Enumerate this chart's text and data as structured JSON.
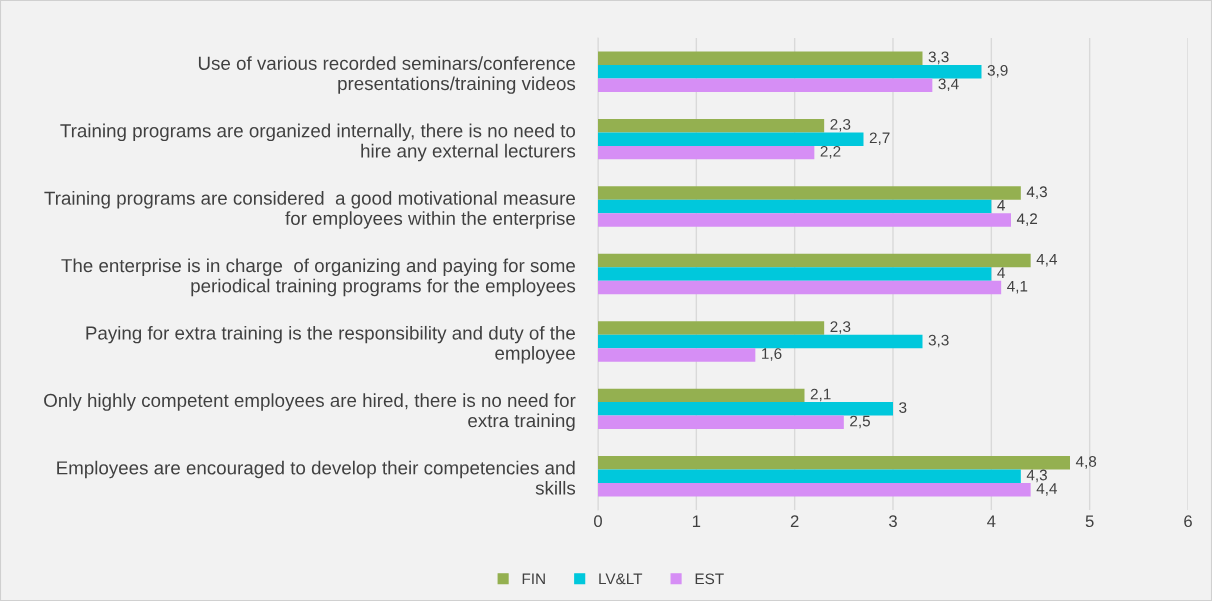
{
  "chart_data": {
    "type": "bar",
    "orientation": "horizontal",
    "categories": [
      "Use of various recorded seminars/conference\npresentations/training videos",
      "Training programs are organized internally, there is no need to\nhire any external lecturers",
      "Training programs are considered  a good motivational measure\nfor employees within the enterprise",
      "The enterprise is in charge  of organizing and paying for some\nperiodical training programs for the employees",
      "Paying for extra training is the responsibility and duty of the\nemployee",
      "Only highly competent employees are hired, there is no need for\nextra training",
      "Employees are encouraged to develop their competencies and\nskills"
    ],
    "series": [
      {
        "name": "FIN",
        "color": "#94b050",
        "values": [
          3.3,
          2.3,
          4.3,
          4.4,
          2.3,
          2.1,
          4.8
        ],
        "value_labels": [
          "3,3",
          "2,3",
          "4,3",
          "4,4",
          "2,3",
          "2,1",
          "4,8"
        ]
      },
      {
        "name": "LV&LT",
        "color": "#00c8dc",
        "values": [
          3.9,
          2.7,
          4,
          4,
          3.3,
          3,
          4.3
        ],
        "value_labels": [
          "3,9",
          "2,7",
          "4",
          "4",
          "3,3",
          "3",
          "4,3"
        ]
      },
      {
        "name": "EST",
        "color": "#d68ef5",
        "values": [
          3.4,
          2.2,
          4.2,
          4.1,
          1.6,
          2.5,
          4.4
        ],
        "value_labels": [
          "3,4",
          "2,2",
          "4,2",
          "4,1",
          "1,6",
          "2,5",
          "4,4"
        ]
      }
    ],
    "xlim": [
      0,
      6
    ],
    "xticks": [
      0,
      1,
      2,
      3,
      4,
      5,
      6
    ],
    "grid": "x",
    "legend": "bottom"
  }
}
